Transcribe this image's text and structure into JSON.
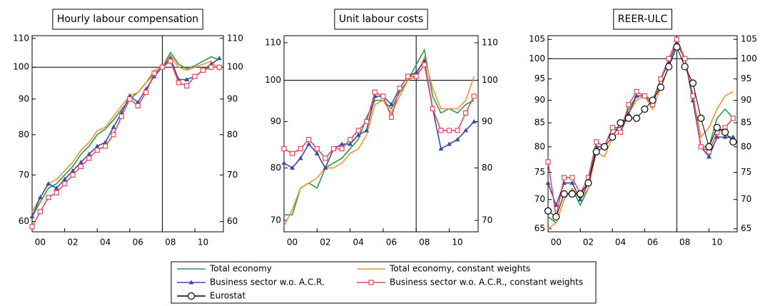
{
  "chart_data": [
    {
      "type": "line",
      "title": "Hourly labour compensation",
      "log_scale": true,
      "x": [
        2000,
        2000.5,
        2001,
        2001.5,
        2002,
        2002.5,
        2003,
        2003.5,
        2004,
        2004.5,
        2005,
        2005.5,
        2006,
        2006.5,
        2007,
        2007.5,
        2008,
        2008.5,
        2009,
        2009.5,
        2010,
        2010.5,
        2011,
        2011.5
      ],
      "xlim": [
        2000,
        2011.75
      ],
      "xticks": [
        {
          "value": 2000,
          "label": "00"
        },
        {
          "value": 2002,
          "label": "02"
        },
        {
          "value": 2004,
          "label": "04"
        },
        {
          "value": 2006,
          "label": "06"
        },
        {
          "value": 2008,
          "label": "08"
        },
        {
          "value": 2010,
          "label": "10"
        }
      ],
      "ylim": [
        58,
        111
      ],
      "yticks": [
        60,
        70,
        80,
        90,
        100,
        110
      ],
      "vline": 2008,
      "hline": 100,
      "series": [
        {
          "name": "Total economy",
          "color": "#2a9a48",
          "marker": null,
          "values": [
            61,
            64,
            67,
            68,
            70,
            72,
            75,
            77,
            80,
            81.5,
            84,
            87,
            90,
            92,
            95,
            98,
            100,
            105,
            101,
            99.5,
            100.5,
            102,
            103.5,
            102.5
          ]
        },
        {
          "name": "Total economy, constant weights",
          "color": "#f2913a",
          "marker": null,
          "values": [
            62,
            65,
            68,
            69,
            71,
            73,
            76,
            78,
            81,
            82,
            85,
            88,
            91,
            92,
            95,
            99,
            100,
            104,
            100,
            99,
            100,
            101,
            102,
            99
          ]
        },
        {
          "name": "Business sector w.o. A.C.R.",
          "color": "#3a4d9c",
          "marker": "triangle",
          "values": [
            61,
            65,
            68,
            67,
            69,
            71,
            73,
            75,
            77,
            78,
            82,
            86,
            91,
            89,
            93,
            97,
            100,
            103,
            96,
            96,
            97,
            99,
            101,
            103
          ]
        },
        {
          "name": "Business sector w.o. A.C.R., constant weights",
          "color": "#e04a5c",
          "marker": "square",
          "values": [
            59,
            62,
            65,
            66,
            68,
            70,
            72,
            74,
            76,
            77,
            80,
            85,
            90,
            88,
            92,
            98,
            100,
            102,
            95,
            94,
            97,
            99,
            100,
            100
          ]
        }
      ]
    },
    {
      "type": "line",
      "title": "Unit labour costs",
      "log_scale": true,
      "x": [
        2000,
        2000.5,
        2001,
        2001.5,
        2002,
        2002.5,
        2003,
        2003.5,
        2004,
        2004.5,
        2005,
        2005.5,
        2006,
        2006.5,
        2007,
        2007.5,
        2008,
        2008.5,
        2009,
        2009.5,
        2010,
        2010.5,
        2011,
        2011.5
      ],
      "xlim": [
        2000,
        2011.75
      ],
      "xticks": [
        {
          "value": 2000,
          "label": "00"
        },
        {
          "value": 2002,
          "label": "02"
        },
        {
          "value": 2004,
          "label": "04"
        },
        {
          "value": 2006,
          "label": "06"
        },
        {
          "value": 2008,
          "label": "08"
        },
        {
          "value": 2010,
          "label": "10"
        }
      ],
      "ylim": [
        68,
        112
      ],
      "yticks": [
        70,
        80,
        90,
        100,
        110
      ],
      "vline": 2008,
      "hline": 100,
      "series": [
        {
          "name": "Total economy",
          "color": "#2a9a48",
          "marker": null,
          "values": [
            71,
            71,
            76,
            77,
            76,
            80,
            81,
            82,
            84,
            86,
            91,
            95,
            95,
            93,
            97,
            100,
            104,
            108,
            96,
            92,
            93,
            92,
            94,
            95
          ]
        },
        {
          "name": "Total economy, constant weights",
          "color": "#f2913a",
          "marker": null,
          "values": [
            69,
            72,
            76,
            77,
            78,
            80,
            80,
            81,
            83,
            84,
            87,
            94,
            95,
            92,
            96,
            100,
            101,
            106,
            98,
            93,
            93,
            93,
            95,
            101
          ]
        },
        {
          "name": "Business sector w.o. A.C.R.",
          "color": "#3a4d9c",
          "marker": "triangle",
          "values": [
            81,
            80,
            82,
            85,
            83,
            80,
            84,
            85,
            85,
            87,
            88,
            96,
            96,
            94,
            98,
            101,
            102,
            105,
            93,
            84,
            85,
            86,
            88,
            90
          ]
        },
        {
          "name": "Business sector w.o. A.C.R., constant weights",
          "color": "#e04a5c",
          "marker": "square",
          "values": [
            84,
            83,
            84,
            86,
            84,
            82,
            84,
            84,
            86,
            88,
            90,
            97,
            96,
            91,
            98,
            101,
            101,
            104,
            93,
            88,
            88,
            88,
            92,
            96
          ]
        }
      ]
    },
    {
      "type": "line",
      "title": "REER-ULC",
      "log_scale": true,
      "x": [
        2000,
        2000.5,
        2001,
        2001.5,
        2002,
        2002.5,
        2003,
        2003.5,
        2004,
        2004.5,
        2005,
        2005.5,
        2006,
        2006.5,
        2007,
        2007.5,
        2008,
        2008.5,
        2009,
        2009.5,
        2010,
        2010.5,
        2011,
        2011.5
      ],
      "xlim": [
        2000,
        2011.75
      ],
      "xticks": [
        {
          "value": 2000,
          "label": "00"
        },
        {
          "value": 2002,
          "label": "02"
        },
        {
          "value": 2004,
          "label": "04"
        },
        {
          "value": 2006,
          "label": "06"
        },
        {
          "value": 2008,
          "label": "08"
        },
        {
          "value": 2010,
          "label": "10"
        }
      ],
      "ylim": [
        64.5,
        106
      ],
      "yticks": [
        65,
        70,
        75,
        80,
        85,
        90,
        95,
        100,
        105
      ],
      "vline": 2008,
      "hline": 100,
      "series": [
        {
          "name": "Total economy",
          "color": "#2a9a48",
          "marker": null,
          "values": [
            67,
            66,
            70,
            72,
            69,
            72,
            80,
            80,
            84,
            84,
            88,
            91,
            91,
            90,
            95,
            99,
            104,
            100,
            90,
            80,
            80,
            86,
            88,
            86
          ]
        },
        {
          "name": "Total economy, constant weights",
          "color": "#f2913a",
          "marker": null,
          "values": [
            65,
            66,
            70,
            72,
            70,
            72,
            79,
            78,
            82,
            83,
            87,
            90,
            91,
            88,
            93,
            98,
            105,
            100,
            91,
            82,
            84,
            88,
            91,
            92
          ]
        },
        {
          "name": "Business sector w.o. A.C.R.",
          "color": "#3a4d9c",
          "marker": "triangle",
          "values": [
            73,
            69,
            73,
            73,
            70,
            73,
            80,
            80,
            84,
            83,
            87,
            91,
            91,
            89,
            95,
            99,
            104,
            100,
            90,
            80,
            78,
            82,
            82,
            82
          ]
        },
        {
          "name": "Business sector w.o. A.C.R., constant weights",
          "color": "#e04a5c",
          "marker": "square",
          "values": [
            77,
            67,
            74,
            74,
            71,
            74,
            81,
            80,
            84,
            83,
            89,
            92,
            91,
            89,
            95,
            100,
            105,
            100,
            91,
            80,
            79,
            83,
            84,
            86
          ]
        },
        {
          "name": "Eurostat",
          "color": "#000000",
          "marker": "circle",
          "values": [
            68,
            67,
            71,
            71,
            71,
            73,
            79,
            80,
            82,
            85,
            86,
            86,
            88,
            90,
            93,
            98,
            103,
            98,
            94,
            86,
            80,
            84,
            83,
            81
          ]
        }
      ]
    }
  ]
}
